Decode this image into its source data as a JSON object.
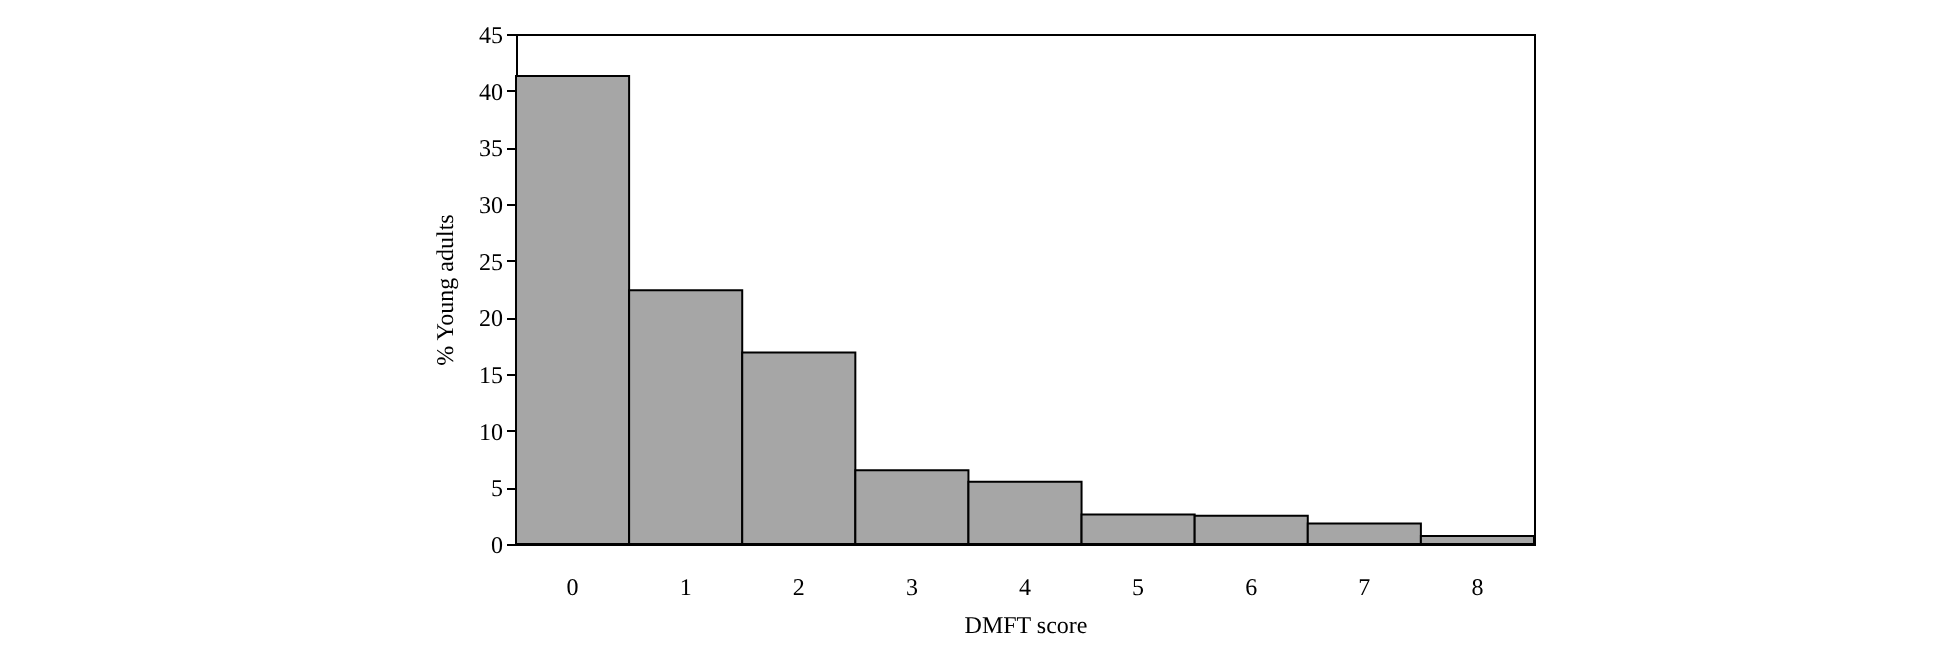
{
  "chart_data": {
    "type": "bar",
    "xlabel": "DMFT score",
    "ylabel": "% Young adults",
    "categories": [
      "0",
      "1",
      "2",
      "3",
      "4",
      "5",
      "6",
      "7",
      "8"
    ],
    "values": [
      41.3,
      22.4,
      16.9,
      6.5,
      5.5,
      2.6,
      2.5,
      1.8,
      0.7
    ],
    "color": "#a6a6a6",
    "ylim": [
      0,
      45
    ],
    "yticks": [
      0,
      5,
      10,
      15,
      20,
      25,
      30,
      35,
      40,
      45
    ],
    "grid": false
  }
}
